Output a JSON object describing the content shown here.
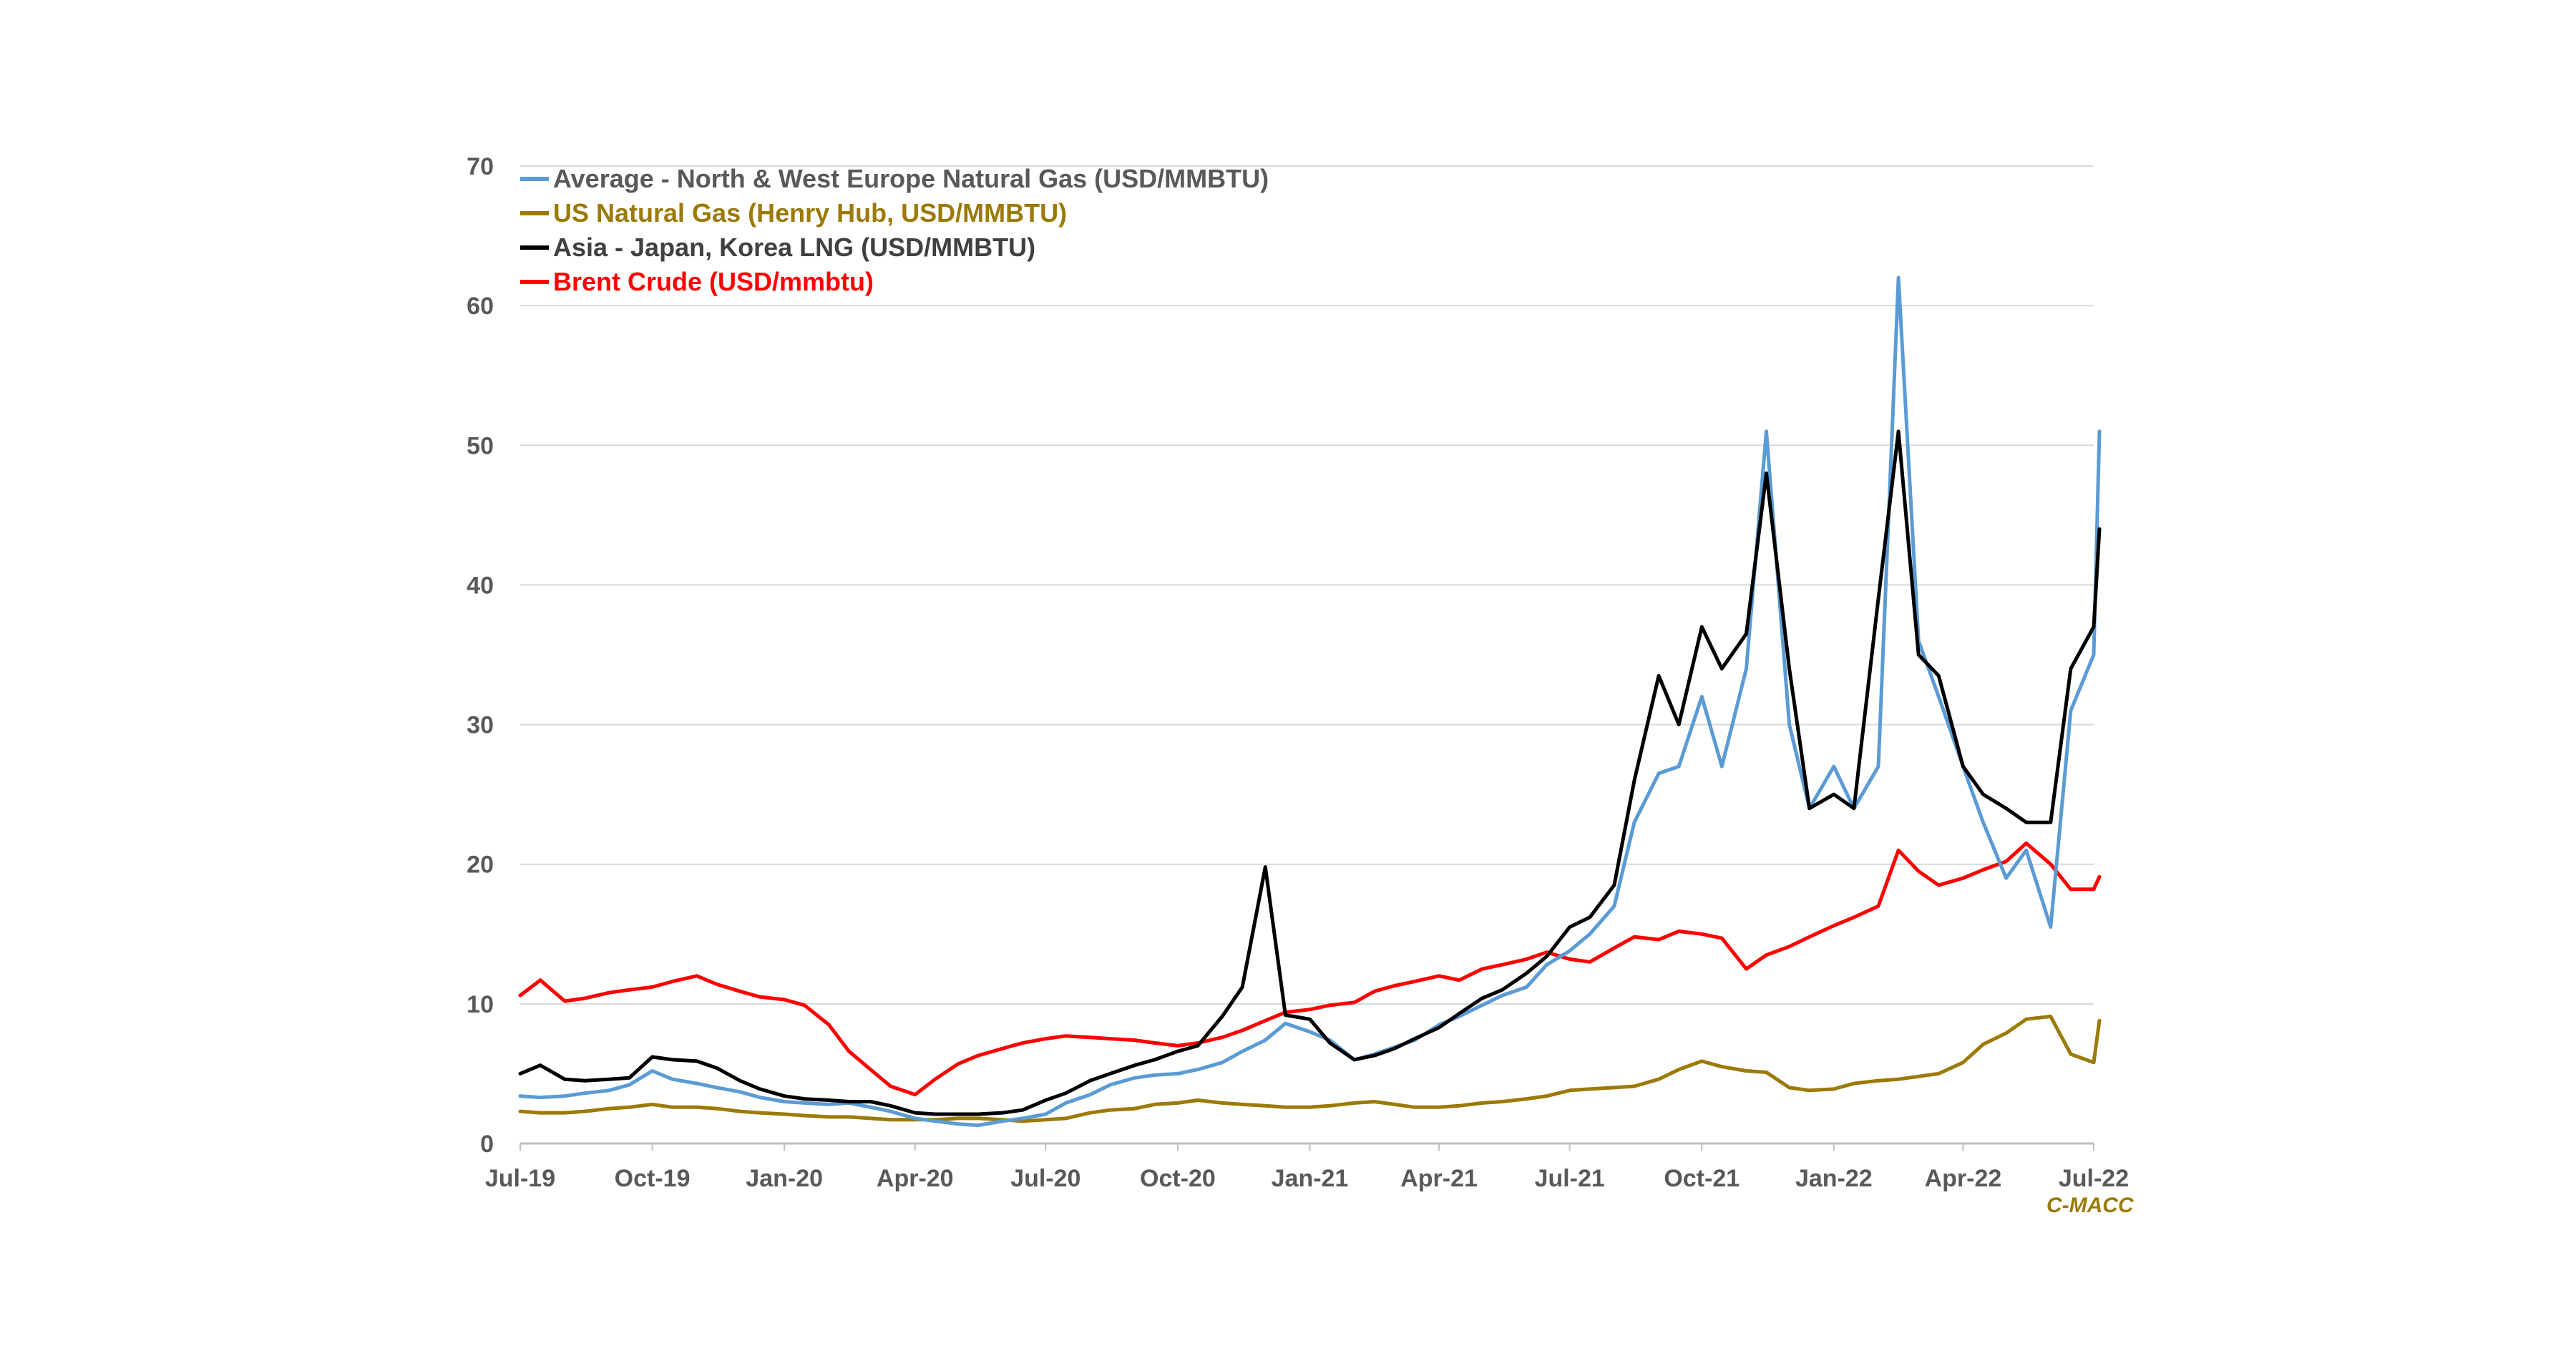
{
  "source": "C-MACC",
  "source_color": "#9C7A07",
  "chart_data": {
    "type": "line",
    "title": "",
    "xlabel": "",
    "ylabel": "",
    "ylim": [
      0,
      70
    ],
    "yticks": [
      0,
      10,
      20,
      30,
      40,
      50,
      60,
      70
    ],
    "xticks": [
      "Jul-19",
      "Oct-19",
      "Jan-20",
      "Apr-20",
      "Jul-20",
      "Oct-20",
      "Jan-21",
      "Apr-21",
      "Jul-21",
      "Oct-21",
      "Jan-22",
      "Apr-22",
      "Jul-22"
    ],
    "grid": "horizontal",
    "legend": "top-left",
    "x": [
      "2019-07-01",
      "2019-07-15",
      "2019-08-01",
      "2019-08-15",
      "2019-09-01",
      "2019-09-15",
      "2019-10-01",
      "2019-10-15",
      "2019-11-01",
      "2019-11-15",
      "2019-12-01",
      "2019-12-15",
      "2020-01-01",
      "2020-01-15",
      "2020-02-01",
      "2020-02-15",
      "2020-03-01",
      "2020-03-15",
      "2020-04-01",
      "2020-04-15",
      "2020-05-01",
      "2020-05-15",
      "2020-06-01",
      "2020-06-15",
      "2020-07-01",
      "2020-07-15",
      "2020-08-01",
      "2020-08-15",
      "2020-09-01",
      "2020-09-15",
      "2020-10-01",
      "2020-10-15",
      "2020-11-01",
      "2020-11-15",
      "2020-12-01",
      "2020-12-15",
      "2021-01-01",
      "2021-01-15",
      "2021-02-01",
      "2021-02-15",
      "2021-03-01",
      "2021-03-15",
      "2021-04-01",
      "2021-04-15",
      "2021-05-01",
      "2021-05-15",
      "2021-06-01",
      "2021-06-15",
      "2021-07-01",
      "2021-07-15",
      "2021-08-01",
      "2021-08-15",
      "2021-09-01",
      "2021-09-15",
      "2021-10-01",
      "2021-10-15",
      "2021-11-01",
      "2021-11-15",
      "2021-12-01",
      "2021-12-15",
      "2022-01-01",
      "2022-01-15",
      "2022-02-01",
      "2022-02-15",
      "2022-03-01",
      "2022-03-15",
      "2022-04-01",
      "2022-04-15",
      "2022-05-01",
      "2022-05-15",
      "2022-06-01",
      "2022-06-15",
      "2022-07-01",
      "2022-07-05"
    ],
    "series": [
      {
        "name": "Average - North & West Europe Natural Gas (USD/MMBTU)",
        "color": "#5B9BD5",
        "values": [
          3.4,
          3.3,
          3.4,
          3.6,
          3.8,
          4.2,
          5.2,
          4.6,
          4.3,
          4.0,
          3.7,
          3.3,
          3.0,
          2.9,
          2.8,
          2.9,
          2.6,
          2.3,
          1.8,
          1.6,
          1.4,
          1.3,
          1.6,
          1.8,
          2.1,
          2.9,
          3.5,
          4.2,
          4.7,
          4.9,
          5.0,
          5.3,
          5.8,
          6.6,
          7.4,
          8.6,
          8.0,
          7.4,
          6.0,
          6.4,
          6.9,
          7.4,
          8.5,
          9.1,
          9.9,
          10.6,
          11.2,
          12.8,
          13.8,
          15.0,
          17.0,
          23.0,
          26.5,
          27.0,
          32.0,
          27.0,
          34.0,
          51.0,
          30.0,
          24.0,
          27.0,
          24.0,
          27.0,
          62.0,
          36.0,
          32.0,
          27.0,
          23.0,
          19.0,
          21.0,
          15.5,
          31.0,
          35.0,
          51.0
        ]
      },
      {
        "name": "US Natural Gas (Henry Hub, USD/MMBTU)",
        "color": "#9C7A07",
        "values": [
          2.3,
          2.2,
          2.2,
          2.3,
          2.5,
          2.6,
          2.8,
          2.6,
          2.6,
          2.5,
          2.3,
          2.2,
          2.1,
          2.0,
          1.9,
          1.9,
          1.8,
          1.7,
          1.7,
          1.7,
          1.8,
          1.8,
          1.7,
          1.6,
          1.7,
          1.8,
          2.2,
          2.4,
          2.5,
          2.8,
          2.9,
          3.1,
          2.9,
          2.8,
          2.7,
          2.6,
          2.6,
          2.7,
          2.9,
          3.0,
          2.8,
          2.6,
          2.6,
          2.7,
          2.9,
          3.0,
          3.2,
          3.4,
          3.8,
          3.9,
          4.0,
          4.1,
          4.6,
          5.3,
          5.9,
          5.5,
          5.2,
          5.1,
          4.0,
          3.8,
          3.9,
          4.3,
          4.5,
          4.6,
          4.8,
          5.0,
          5.8,
          7.1,
          7.9,
          8.9,
          9.1,
          6.4,
          5.8,
          8.8
        ]
      },
      {
        "name": "Asia - Japan, Korea LNG (USD/MMBTU)",
        "color": "#000000",
        "values": [
          5.0,
          5.6,
          4.6,
          4.5,
          4.6,
          4.7,
          6.2,
          6.0,
          5.9,
          5.4,
          4.5,
          3.9,
          3.4,
          3.2,
          3.1,
          3.0,
          3.0,
          2.7,
          2.2,
          2.1,
          2.1,
          2.1,
          2.2,
          2.4,
          3.1,
          3.6,
          4.5,
          5.0,
          5.6,
          6.0,
          6.6,
          7.0,
          9.1,
          11.2,
          19.8,
          9.2,
          8.9,
          7.2,
          6.0,
          6.3,
          6.8,
          7.5,
          8.3,
          9.3,
          10.4,
          11.0,
          12.2,
          13.4,
          15.5,
          16.2,
          18.5,
          26.0,
          33.5,
          30.0,
          37.0,
          34.0,
          36.5,
          48.0,
          34.0,
          24.0,
          25.0,
          24.0,
          39.0,
          51.0,
          35.0,
          33.5,
          27.0,
          25.0,
          24.0,
          23.0,
          23.0,
          34.0,
          37.0,
          44.0
        ]
      },
      {
        "name": "Brent Crude (USD/mmbtu)",
        "color": "#FF0000",
        "values": [
          10.6,
          11.7,
          10.2,
          10.4,
          10.8,
          11.0,
          11.2,
          11.6,
          12.0,
          11.4,
          10.9,
          10.5,
          10.3,
          9.9,
          8.5,
          6.6,
          5.3,
          4.1,
          3.5,
          4.6,
          5.7,
          6.3,
          6.8,
          7.2,
          7.5,
          7.7,
          7.6,
          7.5,
          7.4,
          7.2,
          7.0,
          7.2,
          7.6,
          8.1,
          8.8,
          9.4,
          9.6,
          9.9,
          10.1,
          10.9,
          11.3,
          11.6,
          12.0,
          11.7,
          12.5,
          12.8,
          13.2,
          13.7,
          13.2,
          13.0,
          14.0,
          14.8,
          14.6,
          15.2,
          15.0,
          14.7,
          12.5,
          13.5,
          14.1,
          14.8,
          15.6,
          16.2,
          17.0,
          21.0,
          19.5,
          18.5,
          19.0,
          19.6,
          20.2,
          21.5,
          20.0,
          18.2,
          18.2,
          19.1
        ]
      }
    ]
  }
}
